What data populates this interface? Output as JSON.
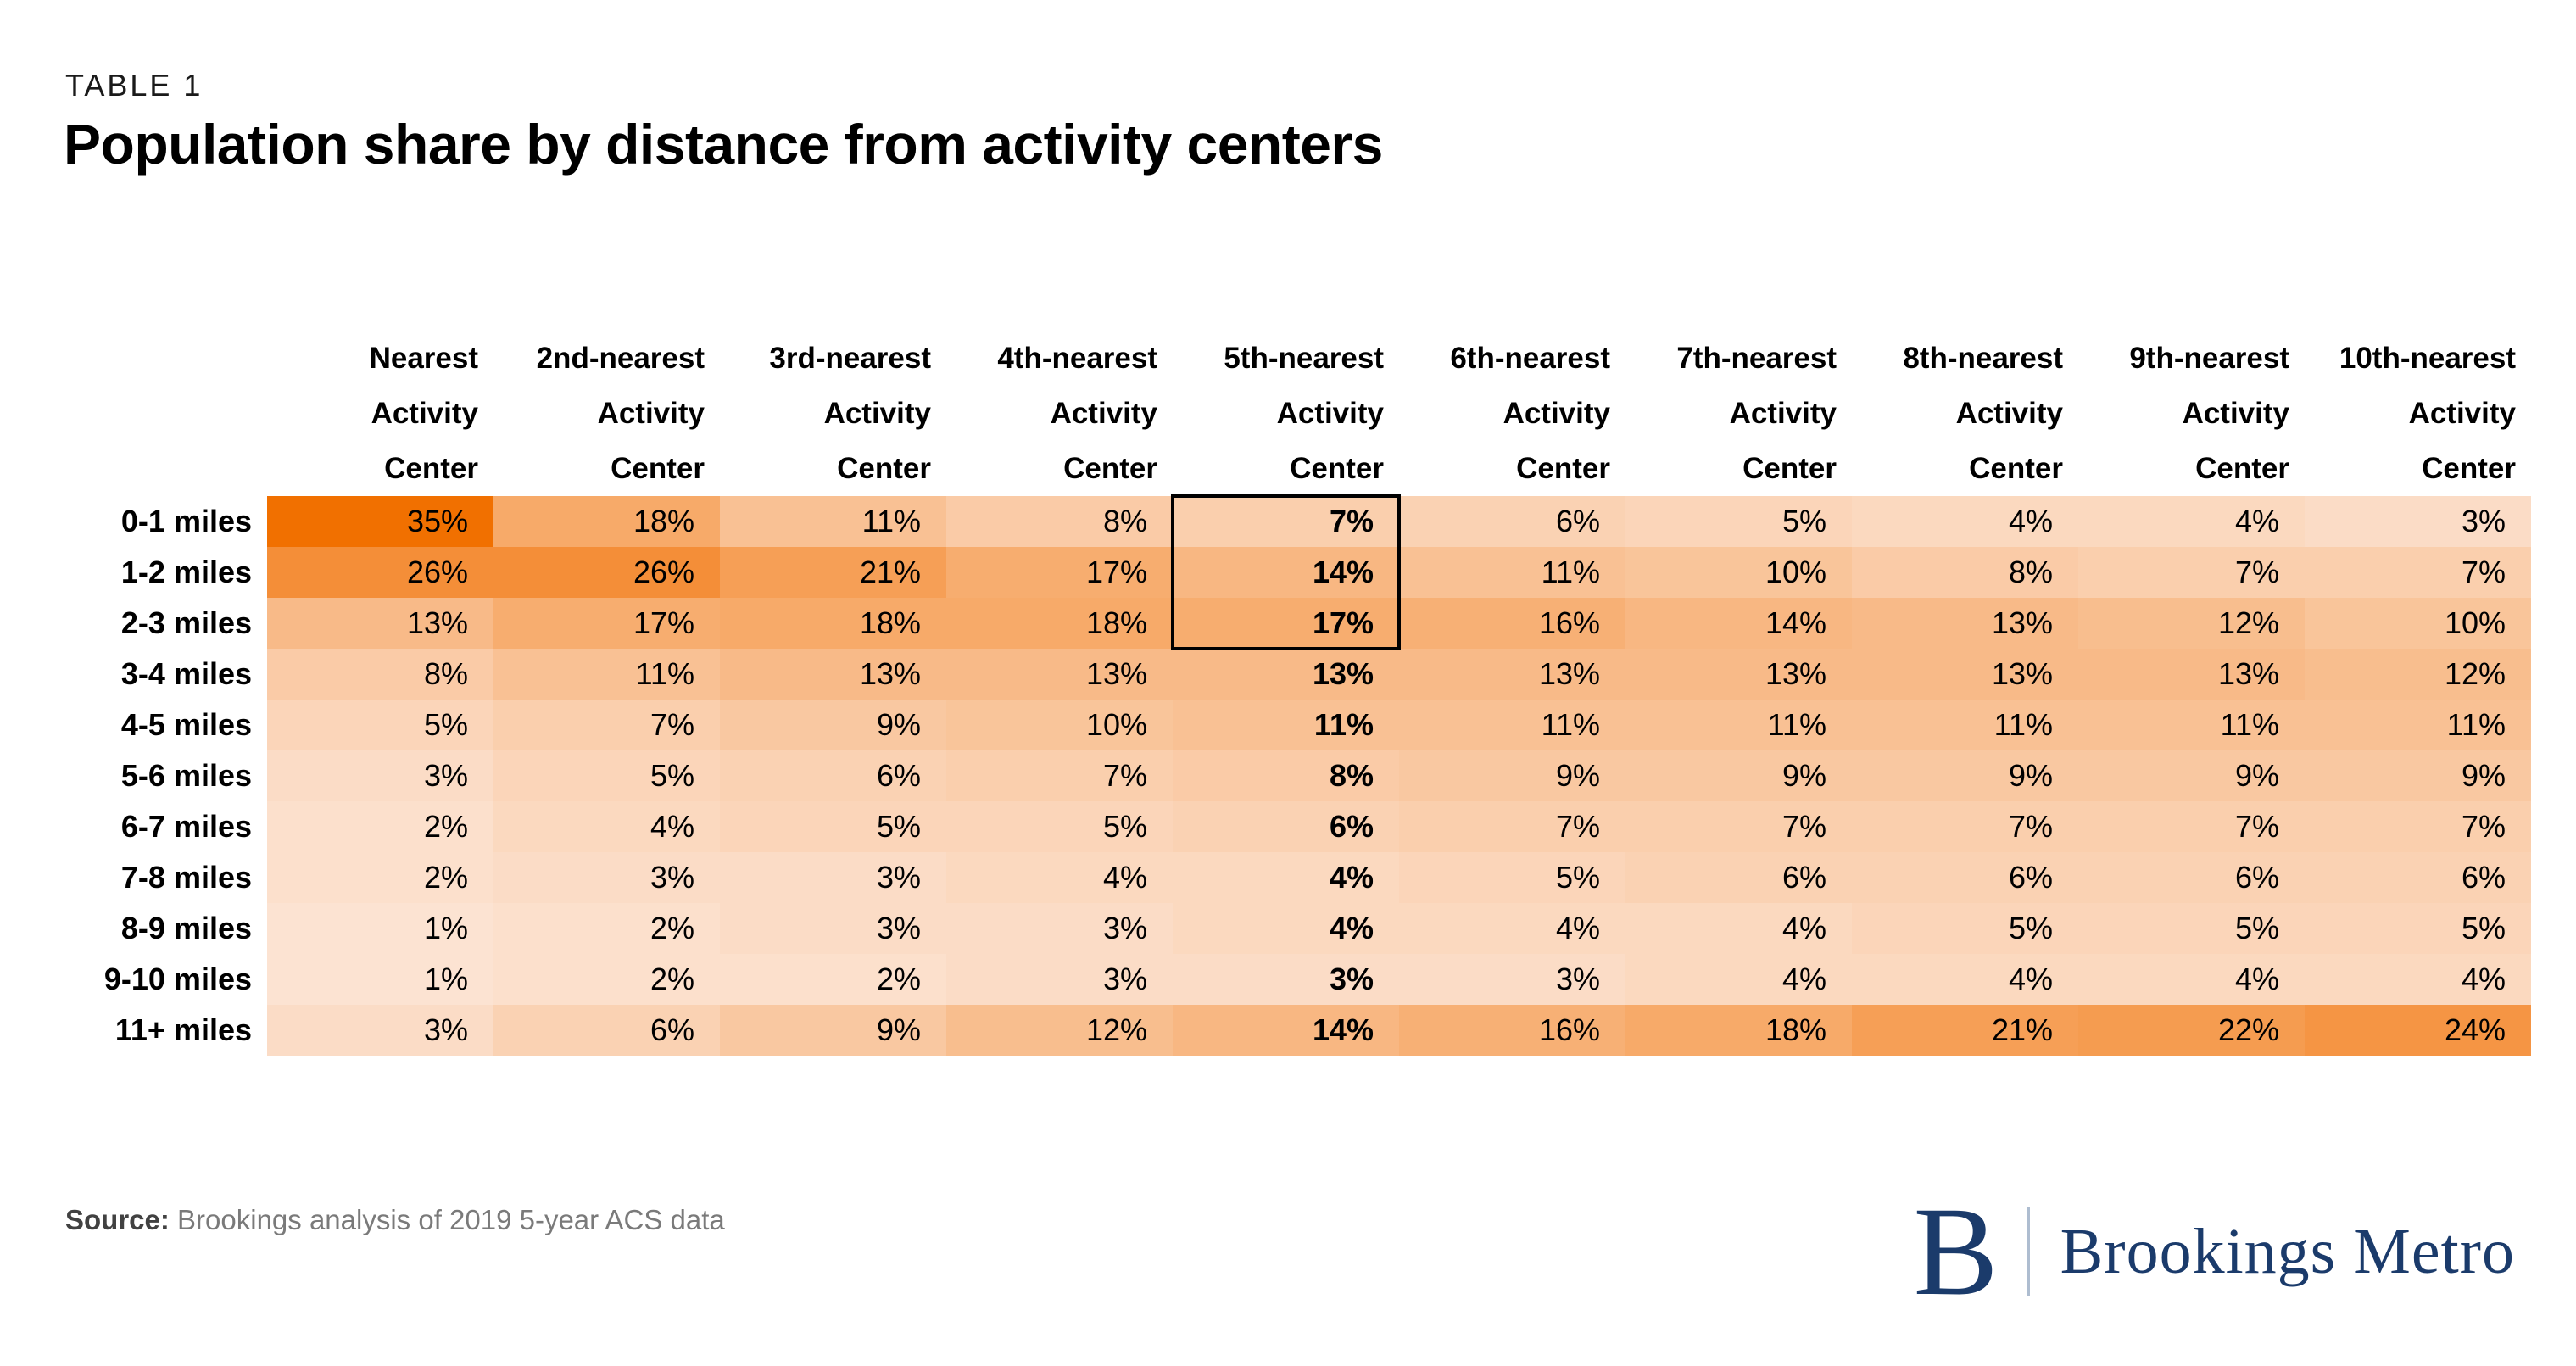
{
  "kicker": "TABLE 1",
  "title": "Population share by distance from activity centers",
  "chart_data": {
    "type": "heatmap",
    "title": "Population share by distance from activity centers",
    "rows": [
      "0-1 miles",
      "1-2 miles",
      "2-3 miles",
      "3-4 miles",
      "4-5 miles",
      "5-6 miles",
      "6-7 miles",
      "7-8 miles",
      "8-9 miles",
      "9-10 miles",
      "11+ miles"
    ],
    "columns": [
      [
        "Nearest",
        "Activity",
        "Center"
      ],
      [
        "2nd-nearest",
        "Activity",
        "Center"
      ],
      [
        "3rd-nearest",
        "Activity",
        "Center"
      ],
      [
        "4th-nearest",
        "Activity",
        "Center"
      ],
      [
        "5th-nearest",
        "Activity",
        "Center"
      ],
      [
        "6th-nearest",
        "Activity",
        "Center"
      ],
      [
        "7th-nearest",
        "Activity",
        "Center"
      ],
      [
        "8th-nearest",
        "Activity",
        "Center"
      ],
      [
        "9th-nearest",
        "Activity",
        "Center"
      ],
      [
        "10th-nearest",
        "Activity",
        "Center"
      ]
    ],
    "unit": "%",
    "values_percent": [
      [
        35,
        18,
        11,
        8,
        7,
        6,
        5,
        4,
        4,
        3
      ],
      [
        26,
        26,
        21,
        17,
        14,
        11,
        10,
        8,
        7,
        7
      ],
      [
        13,
        17,
        18,
        18,
        17,
        16,
        14,
        13,
        12,
        10
      ],
      [
        8,
        11,
        13,
        13,
        13,
        13,
        13,
        13,
        13,
        12
      ],
      [
        5,
        7,
        9,
        10,
        11,
        11,
        11,
        11,
        11,
        11
      ],
      [
        3,
        5,
        6,
        7,
        8,
        9,
        9,
        9,
        9,
        9
      ],
      [
        2,
        4,
        5,
        5,
        6,
        7,
        7,
        7,
        7,
        7
      ],
      [
        2,
        3,
        3,
        4,
        4,
        5,
        6,
        6,
        6,
        6
      ],
      [
        1,
        2,
        3,
        3,
        4,
        4,
        4,
        5,
        5,
        5
      ],
      [
        1,
        2,
        2,
        3,
        3,
        3,
        4,
        4,
        4,
        4
      ],
      [
        3,
        6,
        9,
        12,
        14,
        16,
        18,
        21,
        22,
        24
      ]
    ],
    "bold_column_index": 4,
    "highlight_box": {
      "col_index": 4,
      "row_start": 0,
      "row_end": 2
    },
    "color_scale": {
      "min_value": 1,
      "max_value": 35,
      "min_color": "#FCE3D2",
      "max_color": "#F17000"
    },
    "legend": "none",
    "grid": "off"
  },
  "footer": {
    "source_label": "Source:",
    "source_text": " Brookings analysis of 2019 5-year ACS data"
  },
  "logo": {
    "monogram": "B",
    "wordmark": "Brookings Metro",
    "color": "#1B3B6B",
    "divider_color": "#aebdd0"
  }
}
